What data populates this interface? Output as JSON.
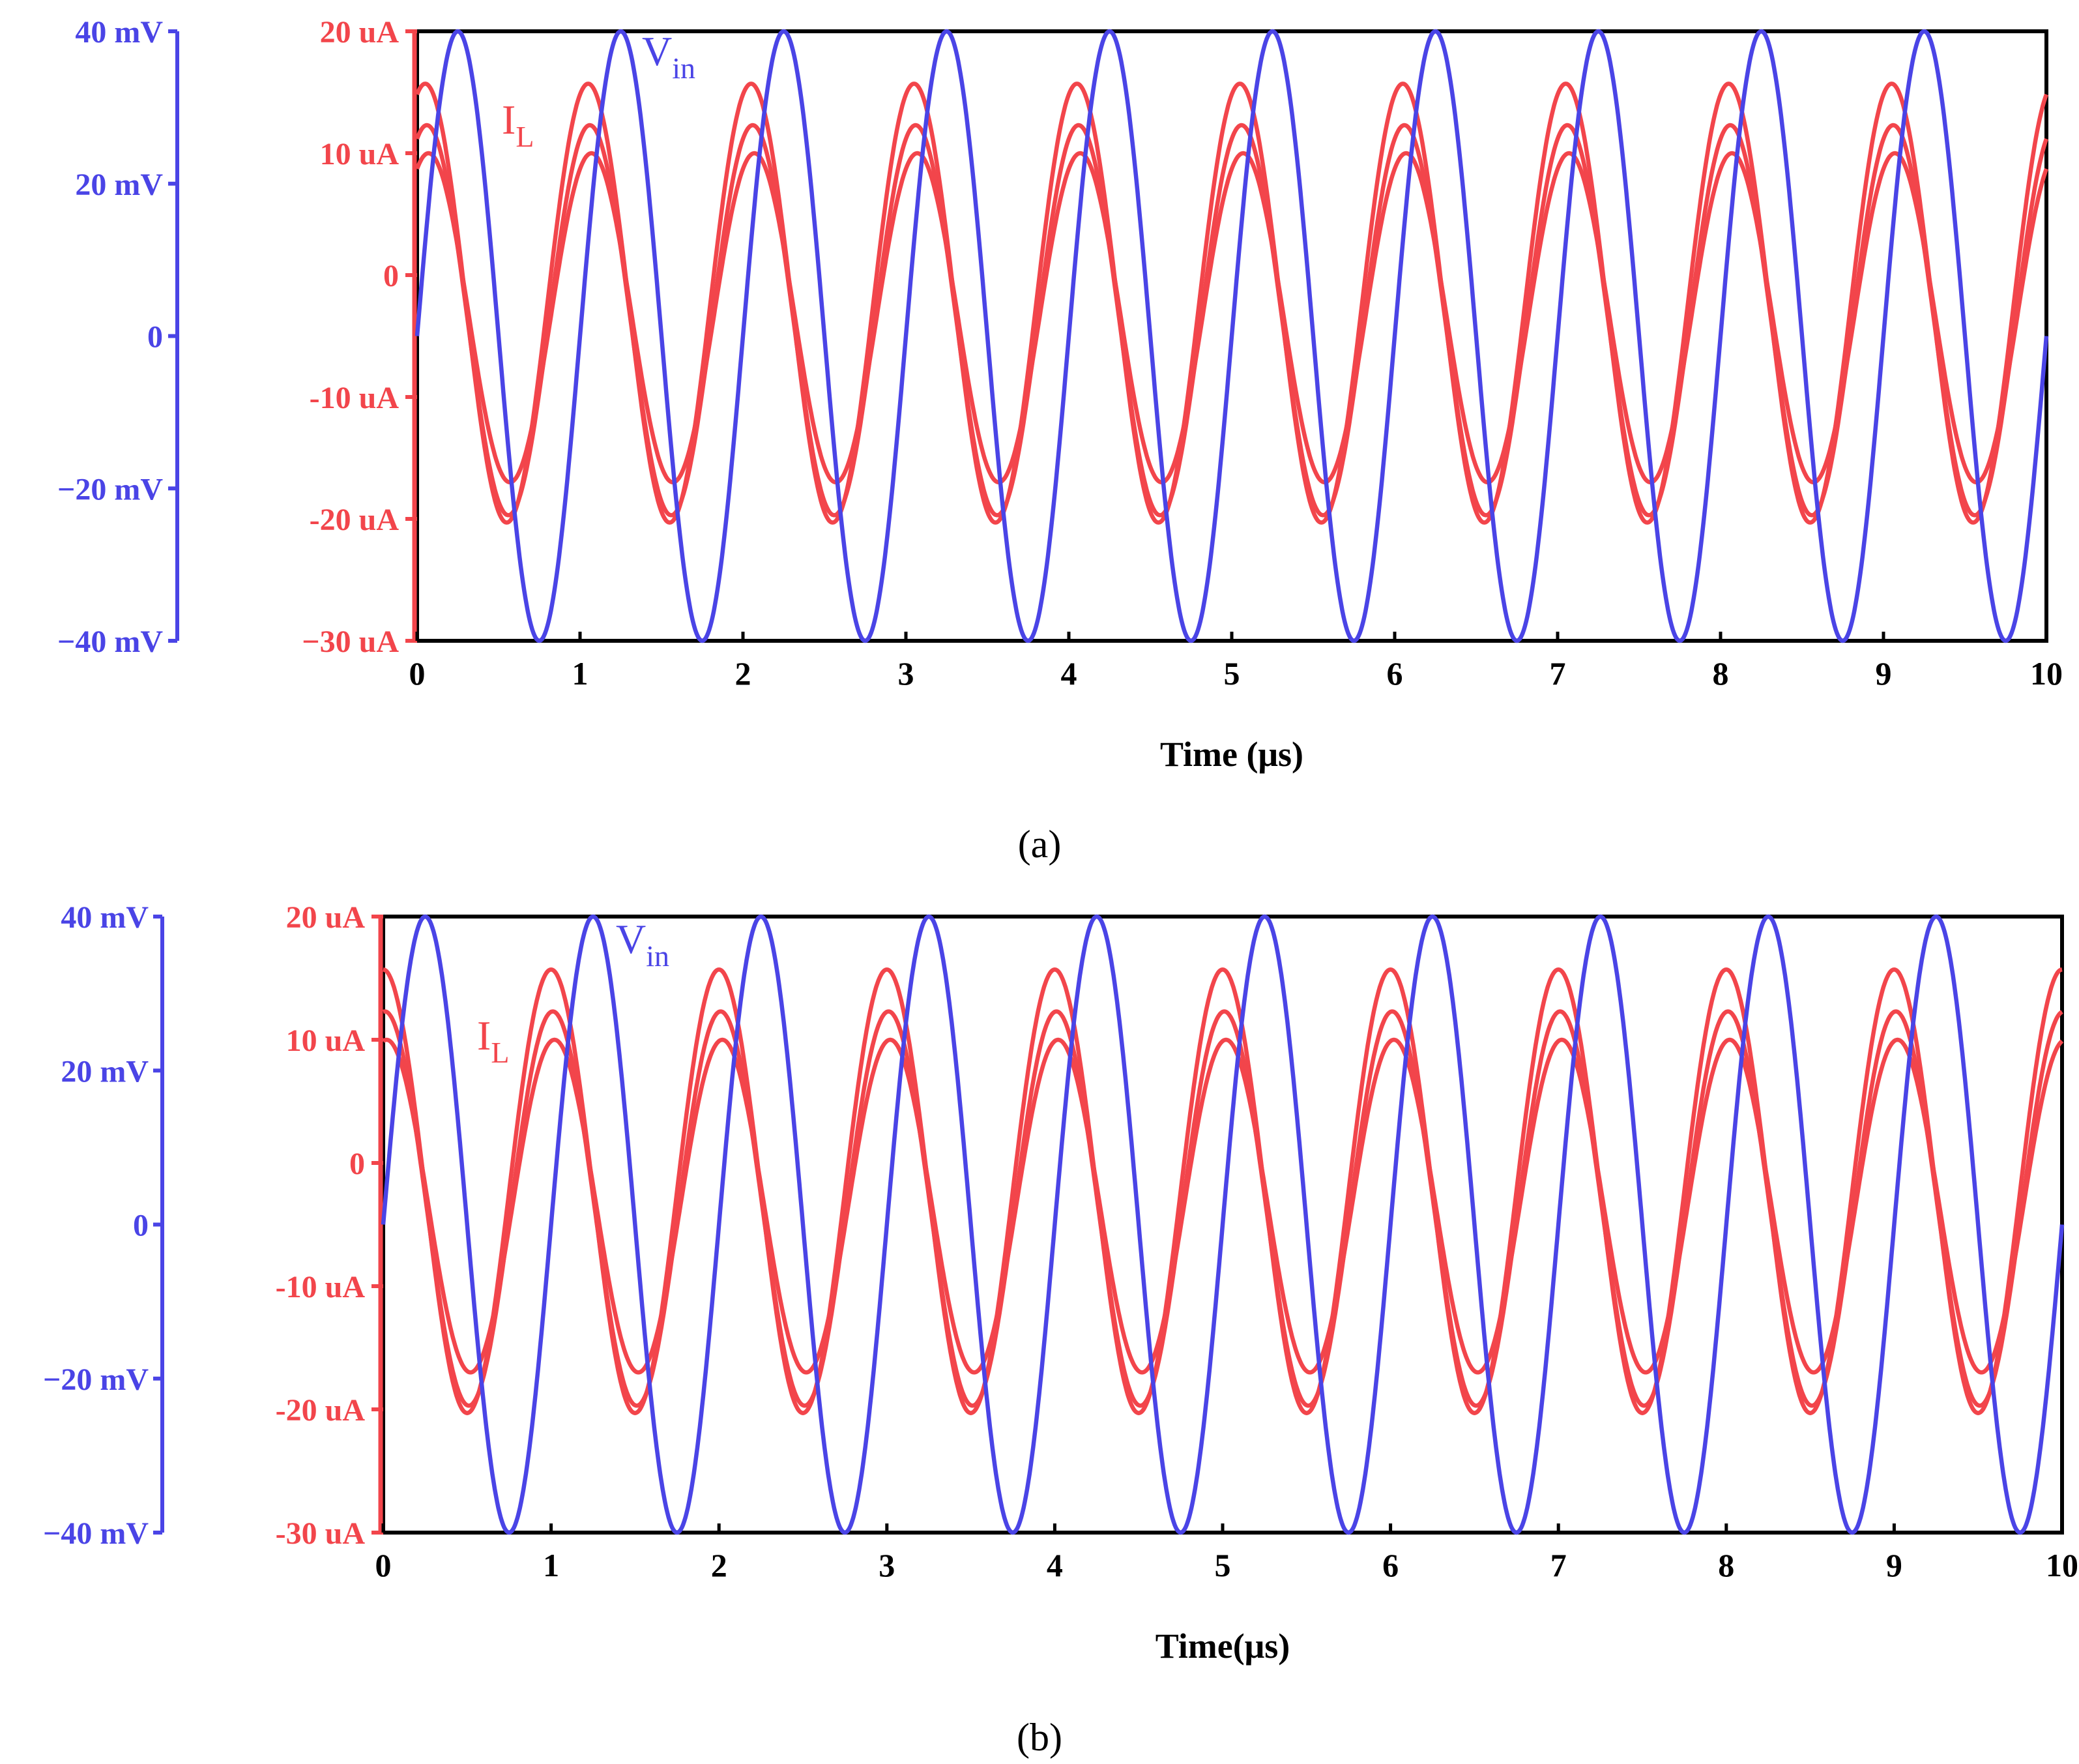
{
  "colors": {
    "voltage": "#4a44e6",
    "current": "#f2454b",
    "frame": "#000000",
    "text": "#000000"
  },
  "chart_data": [
    {
      "type": "line",
      "panel_label": "(a)",
      "xlabel": "Time  (μs)",
      "xlim": [
        0,
        10
      ],
      "x_ticks": [
        "0",
        "1",
        "2",
        "3",
        "4",
        "5",
        "6",
        "7",
        "8",
        "9",
        "10"
      ],
      "left_axis": {
        "ylim": [
          -40,
          40
        ],
        "unit": "mV",
        "ticks": [
          {
            "value": 40,
            "label": "40 mV"
          },
          {
            "value": 20,
            "label": "20 mV"
          },
          {
            "value": 0,
            "label": "0"
          },
          {
            "value": -20,
            "label": "−20 mV"
          },
          {
            "value": -40,
            "label": "−40 mV"
          }
        ]
      },
      "right_axis": {
        "ylim": [
          -30,
          20
        ],
        "unit": "uA",
        "ticks": [
          {
            "value": 20,
            "label": "20 uA"
          },
          {
            "value": 10,
            "label": "10 uA"
          },
          {
            "value": 0,
            "label": "0"
          },
          {
            "value": -10,
            "label": "-10 uA"
          },
          {
            "value": -20,
            "label": "-20 uA"
          },
          {
            "value": -30,
            "label": "−30 uA"
          }
        ]
      },
      "series_labels": {
        "voltage_main": "V",
        "voltage_sub": "in",
        "current_main": "I",
        "current_sub": "L"
      },
      "voltage_series": {
        "axis": "left",
        "amplitude_mV": 40,
        "offset_mV": 0,
        "period_us": 1.0,
        "phase_us": 0.0
      },
      "current_series": [
        {
          "axis": "right",
          "amplitude_uA": 18,
          "offset_uA": -2.3,
          "period_us": 1.0,
          "peak_time_us": 0.05
        },
        {
          "axis": "right",
          "amplitude_uA": 16,
          "offset_uA": -3.7,
          "period_us": 1.0,
          "peak_time_us": 0.06
        },
        {
          "axis": "right",
          "amplitude_uA": 13.5,
          "offset_uA": -3.5,
          "period_us": 1.0,
          "peak_time_us": 0.07
        }
      ]
    },
    {
      "type": "line",
      "panel_label": "(b)",
      "xlabel": "Time(μs)",
      "xlim": [
        0,
        10
      ],
      "x_ticks": [
        "0",
        "1",
        "2",
        "3",
        "4",
        "5",
        "6",
        "7",
        "8",
        "9",
        "10"
      ],
      "left_axis": {
        "ylim": [
          -40,
          40
        ],
        "unit": "mV",
        "ticks": [
          {
            "value": 40,
            "label": "40 mV"
          },
          {
            "value": 20,
            "label": "20 mV"
          },
          {
            "value": 0,
            "label": "0"
          },
          {
            "value": -20,
            "label": "−20 mV"
          },
          {
            "value": -40,
            "label": "−40 mV"
          }
        ]
      },
      "right_axis": {
        "ylim": [
          -30,
          20
        ],
        "unit": "uA",
        "ticks": [
          {
            "value": 20,
            "label": "20 uA"
          },
          {
            "value": 10,
            "label": "10 uA"
          },
          {
            "value": 0,
            "label": "0"
          },
          {
            "value": -10,
            "label": "-10 uA"
          },
          {
            "value": -20,
            "label": "-20 uA"
          },
          {
            "value": -30,
            "label": "-30 uA"
          }
        ]
      },
      "series_labels": {
        "voltage_main": "V",
        "voltage_sub": "in",
        "current_main": "I",
        "current_sub": "L"
      },
      "voltage_series": {
        "axis": "left",
        "amplitude_mV": 40,
        "offset_mV": 0,
        "period_us": 1.0,
        "phase_us": 0.0
      },
      "current_series": [
        {
          "axis": "right",
          "amplitude_uA": 18,
          "offset_uA": -2.3,
          "period_us": 1.0,
          "peak_time_us": 0.0
        },
        {
          "axis": "right",
          "amplitude_uA": 16,
          "offset_uA": -3.7,
          "period_us": 1.0,
          "peak_time_us": 0.01
        },
        {
          "axis": "right",
          "amplitude_uA": 13.5,
          "offset_uA": -3.5,
          "period_us": 1.0,
          "peak_time_us": 0.02
        }
      ]
    }
  ]
}
